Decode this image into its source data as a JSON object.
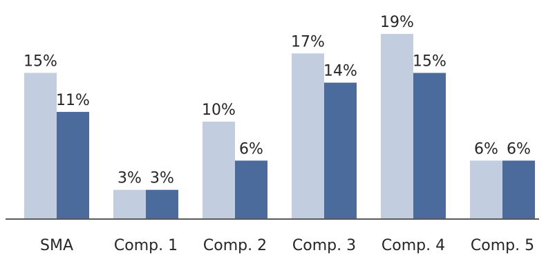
{
  "chart_data": {
    "type": "bar",
    "categories": [
      "SMA",
      "Comp. 1",
      "Comp. 2",
      "Comp. 3",
      "Comp. 4",
      "Comp. 5"
    ],
    "series": [
      {
        "values": [
          15,
          3,
          10,
          17,
          19,
          6
        ],
        "labels": [
          "15%",
          "3%",
          "10%",
          "17%",
          "19%",
          "6%"
        ],
        "color": "#c3cde0"
      },
      {
        "values": [
          11,
          3,
          6,
          14,
          15,
          6
        ],
        "labels": [
          "11%",
          "3%",
          "6%",
          "14%",
          "15%",
          "6%"
        ],
        "color": "#4a6b9c"
      }
    ],
    "ylim": [
      0,
      19
    ],
    "grid": false,
    "axis_color": "#595959"
  }
}
